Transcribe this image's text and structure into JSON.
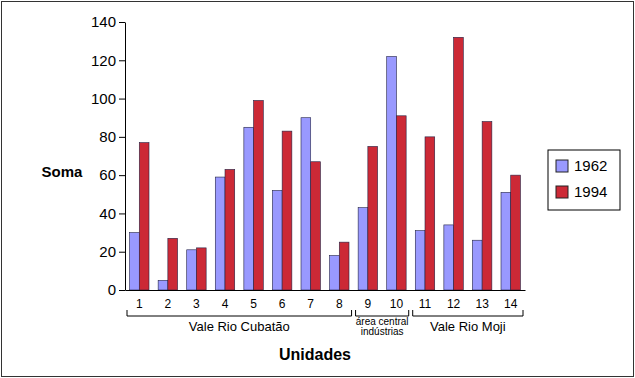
{
  "chart_data": {
    "type": "bar",
    "x_label": "Unidades",
    "y_label": "Soma",
    "categories": [
      "1",
      "2",
      "3",
      "4",
      "5",
      "6",
      "7",
      "8",
      "9",
      "10",
      "11",
      "12",
      "13",
      "14"
    ],
    "category_groups": [
      {
        "label": "Vale Rio Cubatão",
        "span": 8
      },
      {
        "label": "área central indústrias",
        "span": 2
      },
      {
        "label": "Vale Rio Moji",
        "span": 4
      }
    ],
    "series": [
      {
        "name": "1962",
        "color": "#9999ff",
        "values": [
          30,
          5,
          21,
          59,
          85,
          52,
          90,
          18,
          43,
          122,
          31,
          34,
          26,
          51
        ]
      },
      {
        "name": "1994",
        "color": "#cc2936",
        "values": [
          77,
          27,
          22,
          63,
          99,
          83,
          67,
          25,
          75,
          91,
          80,
          132,
          88,
          60
        ]
      }
    ],
    "ylim": [
      0,
      140
    ],
    "yticks": [
      0,
      20,
      40,
      60,
      80,
      100,
      120,
      140
    ],
    "grid": false,
    "legend": "right"
  }
}
